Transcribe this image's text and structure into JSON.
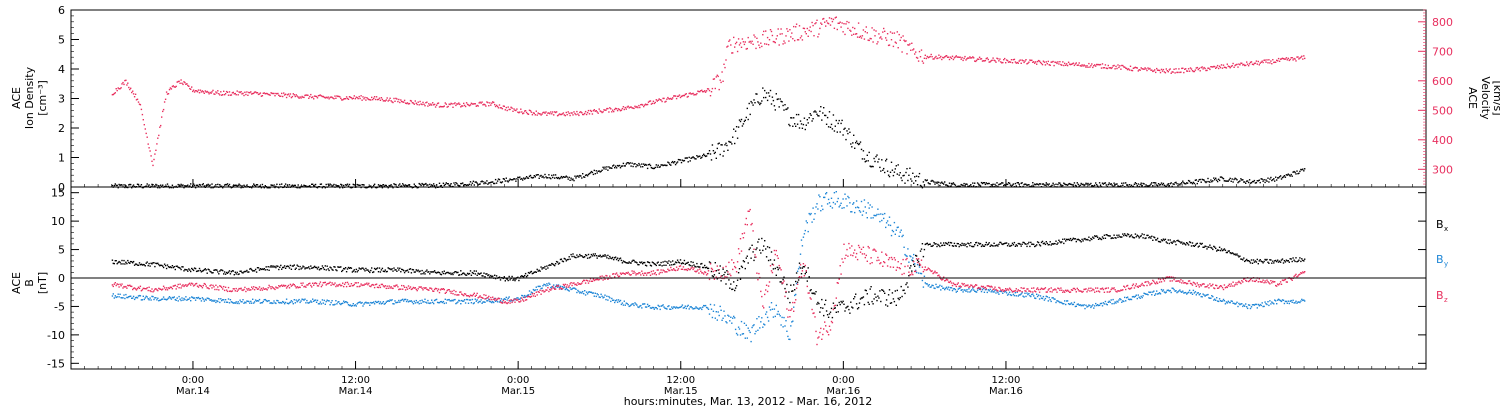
{
  "chart_data": [
    {
      "type": "scatter",
      "panel": "top",
      "left_axis": {
        "label_lines": [
          "ACE",
          "Ion Density"
        ],
        "unit": "[cm⁻³]",
        "ylim": [
          0,
          6
        ],
        "ticks": [
          0,
          1,
          2,
          3,
          4,
          5,
          6
        ]
      },
      "right_axis": {
        "label_lines": [
          "ACE",
          "Velocity"
        ],
        "unit": "[km/s]",
        "ylim": [
          240,
          840
        ],
        "ticks": [
          300,
          400,
          500,
          600,
          700,
          800
        ]
      },
      "series": [
        {
          "key": "density",
          "axis": "left",
          "color": "#000000",
          "points": [
            [
              -6,
              0.05
            ],
            [
              0,
              0.06
            ],
            [
              6,
              0.05
            ],
            [
              12,
              0.05
            ],
            [
              18,
              0.07
            ],
            [
              22,
              0.2
            ],
            [
              24,
              0.3
            ],
            [
              26,
              0.4
            ],
            [
              28,
              0.3
            ],
            [
              30,
              0.6
            ],
            [
              32,
              0.8
            ],
            [
              34,
              0.7
            ],
            [
              36,
              0.9
            ],
            [
              38,
              1.1
            ],
            [
              39,
              1.3
            ],
            [
              40,
              1.8
            ],
            [
              41,
              2.6
            ],
            [
              42,
              3.2
            ],
            [
              43,
              2.9
            ],
            [
              44,
              2.4
            ],
            [
              45,
              2.2
            ],
            [
              46,
              2.6
            ],
            [
              47,
              2.3
            ],
            [
              48,
              2.0
            ],
            [
              49,
              1.4
            ],
            [
              50,
              1.0
            ],
            [
              52,
              0.5
            ],
            [
              54,
              0.2
            ],
            [
              56,
              0.1
            ],
            [
              60,
              0.1
            ],
            [
              66,
              0.1
            ],
            [
              72,
              0.1
            ],
            [
              76,
              0.3
            ],
            [
              78,
              0.2
            ],
            [
              80,
              0.3
            ],
            [
              82,
              0.6
            ]
          ]
        },
        {
          "key": "velocity",
          "axis": "right",
          "color": "#e8305f",
          "points": [
            [
              -6,
              560
            ],
            [
              -5,
              600
            ],
            [
              -4,
              530
            ],
            [
              -3,
              320
            ],
            [
              -2,
              560
            ],
            [
              -1,
              600
            ],
            [
              0,
              570
            ],
            [
              2,
              560
            ],
            [
              4,
              560
            ],
            [
              6,
              555
            ],
            [
              8,
              550
            ],
            [
              10,
              545
            ],
            [
              12,
              545
            ],
            [
              14,
              540
            ],
            [
              16,
              530
            ],
            [
              18,
              520
            ],
            [
              20,
              520
            ],
            [
              22,
              525
            ],
            [
              23,
              510
            ],
            [
              24,
              500
            ],
            [
              26,
              490
            ],
            [
              28,
              490
            ],
            [
              30,
              500
            ],
            [
              32,
              510
            ],
            [
              34,
              530
            ],
            [
              36,
              550
            ],
            [
              38,
              570
            ],
            [
              39,
              610
            ],
            [
              39.5,
              720
            ],
            [
              40,
              730
            ],
            [
              42,
              740
            ],
            [
              44,
              760
            ],
            [
              45,
              770
            ],
            [
              46,
              780
            ],
            [
              47,
              800
            ],
            [
              48,
              790
            ],
            [
              50,
              760
            ],
            [
              52,
              740
            ],
            [
              53,
              700
            ],
            [
              54,
              685
            ],
            [
              56,
              680
            ],
            [
              58,
              675
            ],
            [
              60,
              670
            ],
            [
              62,
              665
            ],
            [
              64,
              660
            ],
            [
              66,
              655
            ],
            [
              68,
              650
            ],
            [
              70,
              640
            ],
            [
              72,
              635
            ],
            [
              74,
              640
            ],
            [
              76,
              650
            ],
            [
              78,
              660
            ],
            [
              80,
              670
            ],
            [
              82,
              680
            ]
          ]
        }
      ]
    },
    {
      "type": "scatter",
      "panel": "bottom",
      "left_axis": {
        "label_lines": [
          "ACE",
          "B"
        ],
        "unit": "[nT]",
        "ylim": [
          -16,
          16
        ],
        "ticks": [
          -15,
          -10,
          -5,
          0,
          5,
          10,
          15
        ]
      },
      "legend": "right",
      "series": [
        {
          "name": "Bx",
          "legend_main": "B",
          "legend_sub": "x",
          "color": "#000000",
          "points": [
            [
              -6,
              3
            ],
            [
              -3,
              2.5
            ],
            [
              0,
              1.5
            ],
            [
              3,
              1
            ],
            [
              6,
              2
            ],
            [
              9,
              2
            ],
            [
              12,
              1.5
            ],
            [
              15,
              1.5
            ],
            [
              18,
              1
            ],
            [
              21,
              1
            ],
            [
              23,
              0
            ],
            [
              24,
              0
            ],
            [
              26,
              2
            ],
            [
              28,
              4
            ],
            [
              30,
              4
            ],
            [
              32,
              3
            ],
            [
              34,
              2.5
            ],
            [
              36,
              3
            ],
            [
              38,
              2
            ],
            [
              40,
              -1
            ],
            [
              41,
              4
            ],
            [
              42,
              6
            ],
            [
              43,
              2
            ],
            [
              44,
              -3
            ],
            [
              45,
              3
            ],
            [
              46,
              -4
            ],
            [
              47,
              -6
            ],
            [
              48,
              -5
            ],
            [
              50,
              -3
            ],
            [
              52,
              -3.5
            ],
            [
              54,
              6
            ],
            [
              56,
              6
            ],
            [
              58,
              6
            ],
            [
              60,
              6
            ],
            [
              62,
              6
            ],
            [
              64,
              6.5
            ],
            [
              66,
              7
            ],
            [
              68,
              7.5
            ],
            [
              70,
              7.5
            ],
            [
              72,
              6.5
            ],
            [
              74,
              6
            ],
            [
              76,
              5
            ],
            [
              78,
              3
            ],
            [
              80,
              3
            ],
            [
              82,
              3.5
            ]
          ]
        },
        {
          "name": "By",
          "legend_main": "B",
          "legend_sub": "y",
          "color": "#1e86d6",
          "points": [
            [
              -6,
              -3
            ],
            [
              -3,
              -3.5
            ],
            [
              0,
              -3.5
            ],
            [
              3,
              -4
            ],
            [
              6,
              -4
            ],
            [
              9,
              -4
            ],
            [
              12,
              -4.5
            ],
            [
              15,
              -4
            ],
            [
              18,
              -4
            ],
            [
              21,
              -4
            ],
            [
              24,
              -3.5
            ],
            [
              26,
              -1
            ],
            [
              28,
              -2
            ],
            [
              30,
              -3
            ],
            [
              32,
              -4.5
            ],
            [
              34,
              -5
            ],
            [
              36,
              -5
            ],
            [
              38,
              -5
            ],
            [
              40,
              -8
            ],
            [
              41,
              -10
            ],
            [
              42,
              -7
            ],
            [
              43,
              -5
            ],
            [
              44,
              -10
            ],
            [
              45,
              8
            ],
            [
              46,
              13
            ],
            [
              47,
              14
            ],
            [
              48,
              13.5
            ],
            [
              50,
              12
            ],
            [
              52,
              8
            ],
            [
              54,
              -1
            ],
            [
              56,
              -2
            ],
            [
              58,
              -2
            ],
            [
              60,
              -2.5
            ],
            [
              62,
              -3
            ],
            [
              64,
              -4
            ],
            [
              66,
              -5
            ],
            [
              68,
              -4
            ],
            [
              70,
              -3
            ],
            [
              72,
              -2
            ],
            [
              74,
              -2.5
            ],
            [
              76,
              -4
            ],
            [
              78,
              -5
            ],
            [
              80,
              -4
            ],
            [
              82,
              -4
            ]
          ]
        },
        {
          "name": "Bz",
          "legend_main": "B",
          "legend_sub": "z",
          "color": "#e8305f",
          "points": [
            [
              -6,
              -1
            ],
            [
              -3,
              -2
            ],
            [
              0,
              -1
            ],
            [
              3,
              -2
            ],
            [
              6,
              -1.5
            ],
            [
              9,
              -1
            ],
            [
              12,
              -1
            ],
            [
              15,
              -1.5
            ],
            [
              18,
              -2
            ],
            [
              21,
              -3
            ],
            [
              23,
              -4
            ],
            [
              24,
              -4
            ],
            [
              26,
              -2
            ],
            [
              28,
              -1
            ],
            [
              30,
              0
            ],
            [
              32,
              1
            ],
            [
              34,
              1
            ],
            [
              36,
              2
            ],
            [
              38,
              1
            ],
            [
              40,
              2
            ],
            [
              41,
              12
            ],
            [
              42,
              -5
            ],
            [
              43,
              5
            ],
            [
              44,
              -7
            ],
            [
              45,
              3
            ],
            [
              46,
              -10
            ],
            [
              47,
              -8
            ],
            [
              48,
              5
            ],
            [
              50,
              4
            ],
            [
              52,
              2
            ],
            [
              54,
              2
            ],
            [
              56,
              -1
            ],
            [
              58,
              -1.5
            ],
            [
              60,
              -2
            ],
            [
              62,
              -2
            ],
            [
              64,
              -2
            ],
            [
              66,
              -2
            ],
            [
              68,
              -2
            ],
            [
              70,
              -1
            ],
            [
              72,
              0
            ],
            [
              74,
              -1
            ],
            [
              76,
              -1.5
            ],
            [
              78,
              0
            ],
            [
              80,
              -1
            ],
            [
              82,
              1
            ]
          ]
        }
      ]
    }
  ],
  "x_axis": {
    "range_hours": [
      -9,
      91
    ],
    "ticks": [
      {
        "h": 0,
        "time": "0:00",
        "date": "Mar.14"
      },
      {
        "h": 12,
        "time": "12:00",
        "date": "Mar.14"
      },
      {
        "h": 24,
        "time": "0:00",
        "date": "Mar.15"
      },
      {
        "h": 36,
        "time": "12:00",
        "date": "Mar.15"
      },
      {
        "h": 48,
        "time": "0:00",
        "date": "Mar.16"
      },
      {
        "h": 60,
        "time": "12:00",
        "date": "Mar.16"
      }
    ],
    "title": "hours:minutes, Mar. 13, 2012 - Mar. 16, 2012"
  }
}
